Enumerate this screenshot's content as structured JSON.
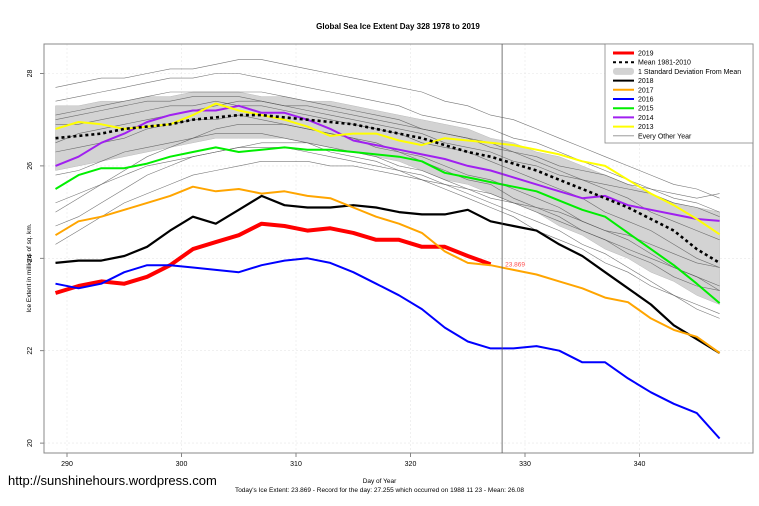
{
  "chart_data": {
    "type": "line",
    "title": "Global Sea Ice Extent Day 328 1978 to 2019",
    "xlabel": "Day of Year",
    "ylabel": "Ice Extent in millions of sq. km.",
    "xlim": [
      288,
      349
    ],
    "ylim": [
      19.9,
      28.6
    ],
    "xticks": [
      290,
      300,
      310,
      320,
      330,
      340
    ],
    "yticks": [
      20,
      22,
      24,
      26,
      28
    ],
    "grid": true,
    "legend_position": "top-right",
    "current_day": 328,
    "current_label": "23.869",
    "x_start": 289,
    "x_step": 2,
    "band": {
      "name": "1 Standard Deviation From Mean",
      "upper": [
        27.3,
        27.3,
        27.4,
        27.4,
        27.5,
        27.5,
        27.6,
        27.6,
        27.6,
        27.5,
        27.5,
        27.4,
        27.4,
        27.3,
        27.2,
        27.1,
        27.0,
        26.9,
        26.8,
        26.6,
        26.5,
        26.3,
        26.2,
        26.0,
        25.8,
        25.6,
        25.4,
        25.2,
        25.1,
        25.0
      ],
      "lower": [
        25.9,
        26.0,
        26.1,
        26.2,
        26.3,
        26.4,
        26.5,
        26.6,
        26.6,
        26.6,
        26.6,
        26.5,
        26.4,
        26.3,
        26.2,
        26.1,
        25.9,
        25.7,
        25.6,
        25.4,
        25.2,
        25.0,
        24.7,
        24.5,
        24.2,
        24.0,
        23.7,
        23.5,
        23.2,
        23.0
      ]
    },
    "series": [
      {
        "name": "Mean 1981-2010",
        "color": "#000000",
        "dash": true,
        "width": 2.6,
        "values": [
          26.6,
          26.65,
          26.7,
          26.8,
          26.85,
          26.9,
          27.0,
          27.05,
          27.1,
          27.1,
          27.05,
          27.0,
          26.95,
          26.9,
          26.8,
          26.7,
          26.6,
          26.45,
          26.3,
          26.2,
          26.05,
          25.9,
          25.7,
          25.5,
          25.3,
          25.1,
          24.85,
          24.6,
          24.2,
          23.9
        ]
      },
      {
        "name": "2013",
        "color": "#ffff00",
        "width": 2,
        "values": [
          26.8,
          26.95,
          26.9,
          26.8,
          26.85,
          26.9,
          27.1,
          27.35,
          27.2,
          27.1,
          27.0,
          26.85,
          26.65,
          26.7,
          26.7,
          26.55,
          26.45,
          26.6,
          26.55,
          26.5,
          26.45,
          26.35,
          26.25,
          26.1,
          26.0,
          25.7,
          25.4,
          25.15,
          24.85,
          24.52
        ]
      },
      {
        "name": "2014",
        "color": "#a020f0",
        "width": 2,
        "values": [
          26.0,
          26.2,
          26.5,
          26.7,
          26.95,
          27.1,
          27.2,
          27.2,
          27.3,
          27.15,
          27.15,
          27.0,
          26.8,
          26.55,
          26.45,
          26.35,
          26.25,
          26.15,
          26.0,
          25.9,
          25.75,
          25.6,
          25.45,
          25.3,
          25.35,
          25.15,
          25.05,
          24.95,
          24.85,
          24.81
        ]
      },
      {
        "name": "2015",
        "color": "#00ee00",
        "width": 2,
        "values": [
          25.5,
          25.8,
          25.95,
          25.95,
          26.05,
          26.2,
          26.3,
          26.4,
          26.3,
          26.35,
          26.4,
          26.35,
          26.35,
          26.3,
          26.25,
          26.2,
          26.1,
          25.85,
          25.75,
          25.65,
          25.55,
          25.45,
          25.25,
          25.05,
          24.9,
          24.55,
          24.2,
          23.85,
          23.45,
          23.03
        ]
      },
      {
        "name": "2016",
        "color": "#0000ff",
        "width": 2,
        "values": [
          23.45,
          23.35,
          23.45,
          23.7,
          23.85,
          23.85,
          23.8,
          23.75,
          23.7,
          23.85,
          23.95,
          24.0,
          23.9,
          23.7,
          23.45,
          23.2,
          22.9,
          22.5,
          22.2,
          22.05,
          22.05,
          22.1,
          22.0,
          21.75,
          21.75,
          21.4,
          21.1,
          20.85,
          20.65,
          20.1
        ]
      },
      {
        "name": "2017",
        "color": "#ffa500",
        "width": 2,
        "values": [
          24.5,
          24.8,
          24.9,
          25.05,
          25.2,
          25.35,
          25.55,
          25.45,
          25.5,
          25.4,
          25.45,
          25.35,
          25.3,
          25.1,
          24.9,
          24.75,
          24.55,
          24.15,
          23.9,
          23.85,
          23.75,
          23.65,
          23.5,
          23.35,
          23.15,
          23.05,
          22.7,
          22.45,
          22.3,
          21.95
        ]
      },
      {
        "name": "2018",
        "color": "#000000",
        "width": 2.2,
        "values": [
          23.9,
          23.95,
          23.95,
          24.05,
          24.25,
          24.6,
          24.9,
          24.75,
          25.05,
          25.35,
          25.15,
          25.1,
          25.1,
          25.15,
          25.1,
          25.0,
          24.95,
          24.95,
          25.05,
          24.8,
          24.7,
          24.6,
          24.3,
          24.05,
          23.7,
          23.35,
          23.0,
          22.55,
          22.25,
          21.95
        ]
      },
      {
        "name": "2019",
        "color": "#ff0000",
        "width": 4,
        "end_day": 328,
        "values": [
          23.25,
          23.4,
          23.5,
          23.45,
          23.6,
          23.85,
          24.2,
          24.35,
          24.5,
          24.75,
          24.7,
          24.6,
          24.65,
          24.55,
          24.4,
          24.4,
          24.25,
          24.25,
          24.05,
          23.87
        ]
      }
    ],
    "legend": [
      {
        "label": "2019",
        "color": "#ff0000",
        "style": "solid"
      },
      {
        "label": "Mean 1981-2010",
        "color": "#000000",
        "style": "dashed"
      },
      {
        "label": "1 Standard Deviation From Mean",
        "color": "#d3d3d3",
        "style": "band"
      },
      {
        "label": "2018",
        "color": "#000000",
        "style": "solid"
      },
      {
        "label": "2017",
        "color": "#ffa500",
        "style": "solid"
      },
      {
        "label": "2016",
        "color": "#0000ff",
        "style": "solid"
      },
      {
        "label": "2015",
        "color": "#00ee00",
        "style": "solid"
      },
      {
        "label": "2014",
        "color": "#a020f0",
        "style": "solid"
      },
      {
        "label": "2013",
        "color": "#ffff00",
        "style": "solid"
      },
      {
        "label": "Every Other Year",
        "color": "#8c8c8c",
        "style": "thin"
      }
    ],
    "other_years": [
      [
        27.7,
        27.8,
        27.9,
        27.9,
        28.0,
        28.1,
        28.1,
        28.2,
        28.3,
        28.3,
        28.2,
        28.1,
        28.0,
        27.9,
        27.8,
        27.7,
        27.6,
        27.4,
        27.3,
        27.1,
        27.0,
        26.8,
        26.6,
        26.4,
        26.2,
        26.0,
        25.8,
        25.6,
        25.5,
        25.3
      ],
      [
        27.4,
        27.5,
        27.6,
        27.7,
        27.8,
        27.9,
        27.9,
        28.0,
        28.0,
        27.9,
        27.8,
        27.7,
        27.6,
        27.5,
        27.4,
        27.3,
        27.1,
        27.0,
        26.9,
        26.8,
        26.6,
        26.5,
        26.3,
        26.1,
        25.9,
        25.7,
        25.5,
        25.3,
        25.2,
        25.0
      ],
      [
        27.1,
        27.2,
        27.3,
        27.4,
        27.5,
        27.6,
        27.6,
        27.6,
        27.6,
        27.6,
        27.5,
        27.4,
        27.3,
        27.2,
        27.1,
        27.0,
        26.8,
        26.7,
        26.6,
        26.5,
        26.3,
        26.1,
        25.9,
        25.7,
        25.5,
        25.3,
        25.0,
        24.8,
        24.6,
        24.4
      ],
      [
        26.9,
        26.9,
        27.0,
        27.1,
        27.2,
        27.3,
        27.3,
        27.4,
        27.3,
        27.3,
        27.2,
        27.1,
        27.0,
        26.9,
        26.8,
        26.7,
        26.5,
        26.4,
        26.3,
        26.1,
        25.9,
        25.7,
        25.5,
        25.3,
        25.0,
        24.8,
        24.6,
        24.3,
        24.0,
        23.8
      ],
      [
        26.3,
        26.4,
        26.5,
        26.6,
        26.8,
        26.9,
        27.0,
        27.0,
        27.1,
        27.0,
        26.9,
        26.8,
        26.7,
        26.6,
        26.5,
        26.3,
        26.2,
        26.0,
        25.8,
        25.7,
        25.5,
        25.3,
        25.1,
        24.8,
        24.6,
        24.4,
        24.1,
        23.8,
        23.6,
        23.3
      ],
      [
        25.8,
        25.9,
        26.1,
        26.3,
        26.4,
        26.5,
        26.6,
        26.7,
        26.7,
        26.7,
        26.6,
        26.5,
        26.3,
        26.2,
        26.1,
        25.9,
        25.8,
        25.6,
        25.4,
        25.2,
        25.0,
        24.8,
        24.6,
        24.3,
        24.1,
        23.8,
        23.5,
        23.2,
        22.9,
        22.7
      ],
      [
        25.2,
        25.4,
        25.6,
        25.8,
        26.0,
        26.1,
        26.2,
        26.3,
        26.4,
        26.4,
        26.4,
        26.3,
        26.2,
        26.1,
        26.0,
        25.9,
        25.7,
        25.5,
        25.3,
        25.1,
        24.9,
        24.6,
        24.4,
        24.2,
        23.9,
        23.7,
        23.4,
        23.2,
        23.0,
        22.8
      ],
      [
        24.7,
        24.9,
        25.2,
        25.5,
        25.8,
        26.0,
        26.2,
        26.3,
        26.4,
        26.5,
        26.5,
        26.5,
        26.4,
        26.3,
        26.2,
        26.0,
        25.9,
        25.7,
        25.5,
        25.3,
        25.2,
        25.0,
        24.8,
        24.6,
        24.4,
        24.2,
        24.0,
        23.8,
        23.6,
        23.4
      ],
      [
        24.3,
        24.6,
        24.9,
        25.2,
        25.4,
        25.6,
        25.8,
        25.9,
        26.0,
        26.1,
        26.1,
        26.1,
        26.0,
        26.0,
        25.9,
        25.8,
        25.7,
        25.6,
        25.5,
        25.4,
        25.2,
        25.1,
        25.0,
        24.8,
        24.6,
        24.5,
        24.3,
        24.1,
        23.9,
        23.8
      ],
      [
        26.5,
        26.7,
        26.8,
        26.9,
        27.0,
        27.1,
        27.2,
        27.3,
        27.4,
        27.4,
        27.3,
        27.3,
        27.2,
        27.1,
        27.0,
        26.9,
        26.8,
        26.7,
        26.6,
        26.4,
        26.3,
        26.2,
        26.0,
        25.9,
        25.8,
        25.6,
        25.5,
        25.4,
        25.3,
        25.4
      ],
      [
        27.0,
        27.1,
        27.2,
        27.3,
        27.4,
        27.4,
        27.5,
        27.5,
        27.5,
        27.4,
        27.3,
        27.2,
        27.1,
        27.0,
        26.9,
        26.8,
        26.7,
        26.5,
        26.4,
        26.3,
        26.1,
        26.0,
        25.8,
        25.7,
        25.6,
        25.5,
        25.4,
        25.2,
        25.1,
        24.9
      ],
      [
        25.0,
        25.3,
        25.6,
        25.9,
        26.2,
        26.4,
        26.6,
        26.8,
        26.9,
        26.9,
        26.9,
        26.8,
        26.7,
        26.6,
        26.4,
        26.3,
        26.1,
        25.9,
        25.7,
        25.6,
        25.3,
        25.1,
        24.9,
        24.6,
        24.4,
        24.1,
        23.9,
        23.6,
        23.4,
        23.3
      ]
    ]
  },
  "watermark": "http://sunshinehours.wordpress.com",
  "footer": {
    "xlabel": "Day of Year",
    "summary": "Today's Ice Extent: 23.869  - Record for the day: 27.255 which occurred on 1988 11 23  - Mean: 26.08"
  }
}
